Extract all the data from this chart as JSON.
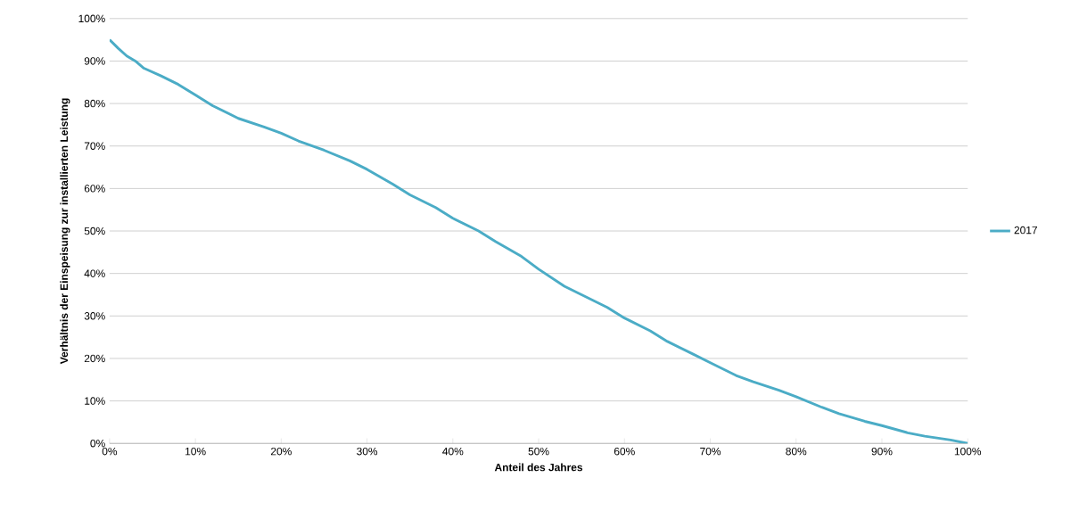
{
  "chart_data": {
    "type": "line",
    "xlabel": "Anteil des Jahres",
    "ylabel": "Verhältnis der Einspeisung  zur installierten Leistung",
    "x": [
      0,
      1,
      2,
      3,
      4,
      6,
      8,
      10,
      12,
      15,
      18,
      20,
      22,
      25,
      28,
      30,
      33,
      35,
      38,
      40,
      43,
      45,
      48,
      50,
      53,
      55,
      58,
      60,
      63,
      65,
      68,
      70,
      73,
      75,
      78,
      80,
      83,
      85,
      88,
      90,
      93,
      95,
      98,
      100
    ],
    "series": [
      {
        "name": "2017",
        "color": "#4bacc6",
        "values": [
          95,
          93,
          91.2,
          90,
          88.3,
          86.5,
          84.5,
          82,
          79.5,
          76.5,
          74.5,
          73,
          71.2,
          69,
          66.5,
          64.5,
          61,
          58.5,
          55.5,
          53,
          50,
          47.5,
          44,
          41,
          37,
          35,
          32,
          29.5,
          26.5,
          24,
          21,
          19,
          16,
          14.5,
          12.5,
          11,
          8.5,
          7,
          5.2,
          4.2,
          2.5,
          1.7,
          0.8,
          0
        ]
      }
    ],
    "xlim": [
      0,
      100
    ],
    "ylim": [
      0,
      100
    ],
    "xticks": [
      {
        "value": 0,
        "label": "0%"
      },
      {
        "value": 10,
        "label": "10%"
      },
      {
        "value": 20,
        "label": "20%"
      },
      {
        "value": 30,
        "label": "30%"
      },
      {
        "value": 40,
        "label": "40%"
      },
      {
        "value": 50,
        "label": "50%"
      },
      {
        "value": 60,
        "label": "60%"
      },
      {
        "value": 70,
        "label": "70%"
      },
      {
        "value": 80,
        "label": "80%"
      },
      {
        "value": 90,
        "label": "90%"
      },
      {
        "value": 100,
        "label": "100%"
      }
    ],
    "yticks": [
      {
        "value": 0,
        "label": "0%"
      },
      {
        "value": 10,
        "label": "10%"
      },
      {
        "value": 20,
        "label": "20%"
      },
      {
        "value": 30,
        "label": "30%"
      },
      {
        "value": 40,
        "label": "40%"
      },
      {
        "value": 50,
        "label": "50%"
      },
      {
        "value": 60,
        "label": "60%"
      },
      {
        "value": 70,
        "label": "70%"
      },
      {
        "value": 80,
        "label": "80%"
      },
      {
        "value": 90,
        "label": "90%"
      },
      {
        "value": 100,
        "label": "100%"
      }
    ],
    "grid": "y",
    "legend": "right",
    "marker": "none",
    "line_style": "solid"
  }
}
